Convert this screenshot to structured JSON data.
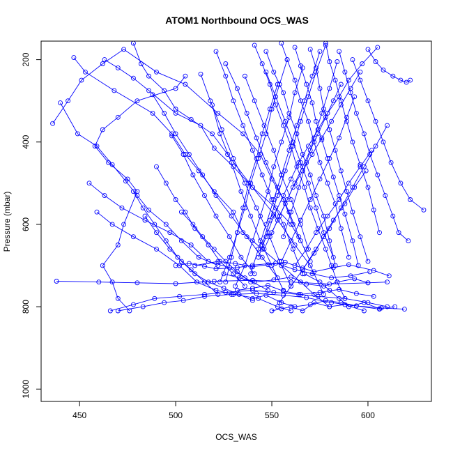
{
  "chart_data": {
    "type": "scatter",
    "title": "ATOM1 Northbound OCS_WAS",
    "xlabel": "OCS_WAS",
    "ylabel": "Pressure (mbar)",
    "xlim": [
      430,
      633
    ],
    "ylim": [
      1030,
      155
    ],
    "y_reversed": true,
    "x_ticks": [
      450,
      500,
      550,
      600
    ],
    "y_ticks": [
      200,
      400,
      600,
      800,
      1000
    ],
    "grid": false,
    "legend": "none",
    "mark_style": "open-circle with connecting lines",
    "color": "#0000ff",
    "series": [
      {
        "x": [
          505,
          500,
          480,
          470,
          462,
          458,
          465,
          475,
          480,
          473,
          470,
          462,
          467,
          470,
          476
        ],
        "y": [
          240,
          270,
          300,
          340,
          370,
          410,
          450,
          490,
          520,
          600,
          650,
          700,
          740,
          780,
          810
        ]
      },
      {
        "x": [
          447,
          453,
          468,
          488,
          498,
          505,
          512,
          520,
          530,
          535,
          545,
          555,
          565,
          572,
          580
        ],
        "y": [
          195,
          230,
          275,
          330,
          380,
          430,
          470,
          520,
          570,
          620,
          660,
          700,
          740,
          770,
          800
        ]
      },
      {
        "x": [
          463,
          470,
          478,
          486,
          500,
          513,
          520,
          530,
          540,
          552,
          560,
          565
        ],
        "y": [
          200,
          220,
          245,
          275,
          330,
          360,
          415,
          460,
          510,
          560,
          600,
          640
        ]
      },
      {
        "x": [
          478,
          482,
          486,
          494,
          500,
          508,
          519,
          527,
          540,
          551,
          562,
          570,
          577
        ],
        "y": [
          160,
          210,
          240,
          275,
          320,
          345,
          380,
          430,
          510,
          575,
          650,
          700,
          770
        ]
      },
      {
        "x": [
          436,
          444,
          451,
          462,
          473,
          490,
          505,
          522,
          535,
          544,
          550,
          556,
          561
        ],
        "y": [
          355,
          300,
          250,
          210,
          175,
          230,
          260,
          330,
          380,
          430,
          490,
          540,
          600
        ]
      },
      {
        "x": [
          440,
          449,
          459,
          467,
          474,
          480,
          486,
          495,
          503,
          512,
          522
        ],
        "y": [
          305,
          380,
          410,
          455,
          495,
          530,
          565,
          600,
          640,
          680,
          700
        ]
      },
      {
        "x": [
          455,
          463,
          472,
          484,
          497,
          508,
          517,
          528,
          536,
          548
        ],
        "y": [
          500,
          530,
          560,
          590,
          620,
          650,
          690,
          705,
          730,
          760
        ]
      },
      {
        "x": [
          459,
          467,
          478,
          490,
          502,
          511,
          521,
          530,
          543,
          553,
          560
        ],
        "y": [
          570,
          600,
          630,
          660,
          700,
          740,
          760,
          770,
          780,
          800,
          810
        ]
      },
      {
        "x": [
          438,
          460,
          480,
          500,
          520,
          540,
          560,
          580,
          600,
          610
        ],
        "y": [
          738,
          740,
          742,
          744,
          738,
          736,
          740,
          745,
          742,
          740
        ]
      },
      {
        "x": [
          466,
          478,
          489,
          502,
          515,
          526,
          540,
          551,
          564,
          574,
          588,
          600,
          610
        ],
        "y": [
          810,
          795,
          780,
          775,
          770,
          765,
          760,
          765,
          770,
          775,
          780,
          790,
          800
        ]
      },
      {
        "x": [
          470,
          483,
          494,
          504,
          515,
          529,
          542,
          556,
          568,
          581,
          594,
          607,
          619
        ],
        "y": [
          810,
          800,
          790,
          785,
          775,
          770,
          768,
          772,
          778,
          790,
          798,
          803,
          806
        ]
      },
      {
        "x": [
          500,
          507,
          515,
          521,
          532,
          540,
          552,
          562,
          571,
          581,
          591,
          601
        ],
        "y": [
          700,
          695,
          702,
          708,
          705,
          699,
          694,
          710,
          720,
          730,
          725,
          715
        ]
      },
      {
        "x": [
          510,
          522,
          531,
          540,
          548,
          557,
          566,
          572,
          582,
          590,
          603,
          611
        ],
        "y": [
          700,
          690,
          695,
          703,
          698,
          692,
          706,
          715,
          705,
          698,
          712,
          725
        ]
      },
      {
        "x": [
          525,
          533,
          541,
          551,
          560,
          568,
          577,
          584,
          593,
          600
        ],
        "y": [
          720,
          730,
          740,
          735,
          728,
          745,
          750,
          740,
          732,
          742
        ]
      },
      {
        "x": [
          532,
          540,
          548,
          556,
          565,
          575,
          585,
          594,
          603
        ],
        "y": [
          760,
          755,
          748,
          762,
          770,
          765,
          758,
          768,
          775
        ]
      },
      {
        "x": [
          540,
          547,
          555,
          562,
          570,
          578,
          586,
          594,
          606
        ],
        "y": [
          780,
          772,
          790,
          800,
          795,
          785,
          790,
          798,
          806
        ]
      },
      {
        "x": [
          550,
          555,
          560,
          566,
          572,
          580,
          588,
          598
        ],
        "y": [
          810,
          805,
          800,
          810,
          790,
          800,
          795,
          810
        ]
      },
      {
        "x": [
          567,
          575,
          580,
          585,
          590,
          598,
          606,
          614
        ],
        "y": [
          720,
          740,
          760,
          780,
          800,
          790,
          805,
          800
        ]
      },
      {
        "x": [
          541,
          545,
          549,
          552,
          556,
          560,
          563,
          567,
          570,
          574,
          578,
          581,
          584,
          588
        ],
        "y": [
          165,
          210,
          260,
          310,
          360,
          410,
          460,
          510,
          560,
          610,
          660,
          700,
          740,
          780
        ]
      },
      {
        "x": [
          547,
          551,
          556,
          559,
          563,
          566,
          570,
          573,
          577,
          580,
          583
        ],
        "y": [
          180,
          230,
          280,
          330,
          380,
          430,
          480,
          530,
          580,
          640,
          700
        ]
      },
      {
        "x": [
          555,
          558,
          562,
          565,
          569,
          572,
          575,
          579,
          583,
          586,
          590
        ],
        "y": [
          160,
          200,
          250,
          300,
          350,
          400,
          450,
          500,
          550,
          610,
          680
        ]
      },
      {
        "x": [
          562,
          565,
          568,
          571,
          573,
          576,
          579,
          582,
          585,
          588,
          592,
          595
        ],
        "y": [
          170,
          215,
          260,
          305,
          350,
          395,
          440,
          485,
          530,
          575,
          640,
          700
        ]
      },
      {
        "x": [
          570,
          573,
          575,
          577,
          580,
          583,
          586,
          589,
          592,
          596,
          600
        ],
        "y": [
          175,
          220,
          270,
          320,
          370,
          420,
          470,
          520,
          570,
          630,
          690
        ]
      },
      {
        "x": [
          578,
          580,
          583,
          586,
          589,
          592,
          596,
          600,
          603,
          606
        ],
        "y": [
          160,
          205,
          250,
          300,
          350,
          400,
          455,
          510,
          565,
          620
        ]
      },
      {
        "x": [
          585,
          588,
          591,
          594,
          598,
          601,
          605,
          609,
          613,
          616,
          621
        ],
        "y": [
          180,
          230,
          280,
          330,
          380,
          430,
          480,
          530,
          580,
          620,
          640
        ]
      },
      {
        "x": [
          592,
          596,
          600,
          604,
          608,
          612,
          617,
          622,
          629
        ],
        "y": [
          200,
          250,
          300,
          350,
          400,
          450,
          500,
          540,
          565
        ]
      },
      {
        "x": [
          600,
          604,
          608,
          613,
          617,
          620,
          622
        ],
        "y": [
          175,
          205,
          225,
          240,
          250,
          255,
          250
        ]
      },
      {
        "x": [
          605,
          597,
          590,
          585,
          579,
          574,
          569,
          564,
          560,
          556,
          551,
          547,
          543
        ],
        "y": [
          170,
          210,
          250,
          290,
          330,
          370,
          410,
          450,
          490,
          530,
          580,
          630,
          680
        ]
      },
      {
        "x": [
          596,
          591,
          586,
          581,
          576,
          571,
          566,
          561,
          557,
          553,
          549
        ],
        "y": [
          230,
          270,
          310,
          350,
          390,
          430,
          470,
          510,
          550,
          590,
          630
        ]
      },
      {
        "x": [
          586,
          582,
          578,
          574,
          570,
          566,
          562,
          558,
          554,
          550,
          546
        ],
        "y": [
          260,
          300,
          340,
          380,
          420,
          460,
          500,
          540,
          580,
          620,
          660
        ]
      },
      {
        "x": [
          575,
          571,
          567,
          563,
          559,
          555,
          551,
          547,
          543,
          539
        ],
        "y": [
          180,
          240,
          300,
          360,
          420,
          480,
          540,
          600,
          660,
          720
        ]
      },
      {
        "x": [
          566,
          562,
          559,
          555,
          551,
          548,
          544,
          540,
          536,
          531
        ],
        "y": [
          220,
          280,
          340,
          400,
          460,
          520,
          580,
          640,
          700,
          750
        ]
      },
      {
        "x": [
          558,
          554,
          550,
          547,
          543,
          539,
          536,
          532,
          528,
          523
        ],
        "y": [
          200,
          260,
          320,
          380,
          440,
          500,
          560,
          620,
          680,
          740
        ]
      },
      {
        "x": [
          521,
          526,
          530,
          535,
          540,
          545,
          550,
          556,
          561,
          566
        ],
        "y": [
          180,
          240,
          300,
          360,
          420,
          480,
          540,
          600,
          660,
          720
        ]
      },
      {
        "x": [
          513,
          518,
          524,
          530,
          536,
          542,
          548,
          554,
          560
        ],
        "y": [
          235,
          300,
          370,
          440,
          500,
          560,
          620,
          690,
          750
        ]
      },
      {
        "x": [
          526,
          532,
          537,
          542,
          547,
          553,
          559,
          564,
          570
        ],
        "y": [
          210,
          270,
          330,
          390,
          450,
          510,
          570,
          630,
          690
        ]
      },
      {
        "x": [
          536,
          541,
          546,
          551,
          555,
          560,
          565,
          569
        ],
        "y": [
          240,
          300,
          360,
          420,
          480,
          540,
          600,
          660
        ]
      },
      {
        "x": [
          519,
          523,
          529,
          534,
          539,
          544,
          550,
          556
        ],
        "y": [
          310,
          380,
          450,
          520,
          580,
          640,
          700,
          760
        ]
      },
      {
        "x": [
          547,
          552,
          557,
          561,
          565,
          569,
          573,
          577,
          582
        ],
        "y": [
          230,
          290,
          350,
          400,
          450,
          500,
          560,
          620,
          680
        ]
      },
      {
        "x": [
          553,
          549,
          545,
          542,
          538,
          535,
          532,
          529,
          526
        ],
        "y": [
          260,
          320,
          380,
          440,
          500,
          560,
          620,
          680,
          740
        ]
      },
      {
        "x": [
          578,
          573,
          569,
          565,
          561,
          557,
          553,
          549,
          545
        ],
        "y": [
          165,
          230,
          290,
          350,
          410,
          470,
          530,
          590,
          650
        ]
      },
      {
        "x": [
          584,
          580,
          576,
          572,
          568,
          564,
          560,
          556
        ],
        "y": [
          205,
          270,
          330,
          390,
          450,
          510,
          570,
          630
        ]
      },
      {
        "x": [
          593,
          589,
          585,
          580,
          575,
          570,
          565,
          560,
          555
        ],
        "y": [
          290,
          340,
          390,
          440,
          490,
          540,
          590,
          640,
          690
        ]
      },
      {
        "x": [
          602,
          596,
          590,
          585,
          579,
          573,
          568,
          562
        ],
        "y": [
          420,
          460,
          500,
          540,
          580,
          620,
          660,
          700
        ]
      },
      {
        "x": [
          610,
          604,
          598,
          592,
          586,
          580,
          573,
          566
        ],
        "y": [
          360,
          410,
          460,
          510,
          560,
          610,
          660,
          710
        ]
      },
      {
        "x": [
          599,
          593,
          588,
          582,
          577,
          572,
          566,
          560,
          554
        ],
        "y": [
          470,
          510,
          550,
          590,
          630,
          670,
          710,
          750,
          790
        ]
      },
      {
        "x": [
          490,
          495,
          500,
          505,
          510,
          517,
          523,
          530,
          536
        ],
        "y": [
          460,
          500,
          540,
          570,
          610,
          650,
          690,
          720,
          750
        ]
      },
      {
        "x": [
          478,
          483,
          489,
          495,
          501,
          508,
          515,
          522
        ],
        "y": [
          520,
          560,
          600,
          640,
          680,
          710,
          740,
          770
        ]
      },
      {
        "x": [
          484,
          490,
          497,
          503,
          510,
          517,
          525,
          533,
          540
        ],
        "y": [
          580,
          620,
          660,
          690,
          720,
          740,
          755,
          770,
          785
        ]
      },
      {
        "x": [
          498,
          504,
          509,
          515,
          521,
          528,
          534,
          541
        ],
        "y": [
          385,
          430,
          480,
          530,
          580,
          630,
          680,
          720
        ]
      },
      {
        "x": [
          503,
          509,
          514,
          520,
          526,
          532,
          539
        ],
        "y": [
          570,
          600,
          630,
          660,
          690,
          715,
          740
        ]
      },
      {
        "x": [
          488,
          494,
          500,
          507,
          514,
          521,
          529,
          537,
          545,
          553
        ],
        "y": [
          285,
          330,
          380,
          430,
          480,
          530,
          580,
          630,
          680,
          730
        ]
      }
    ]
  }
}
